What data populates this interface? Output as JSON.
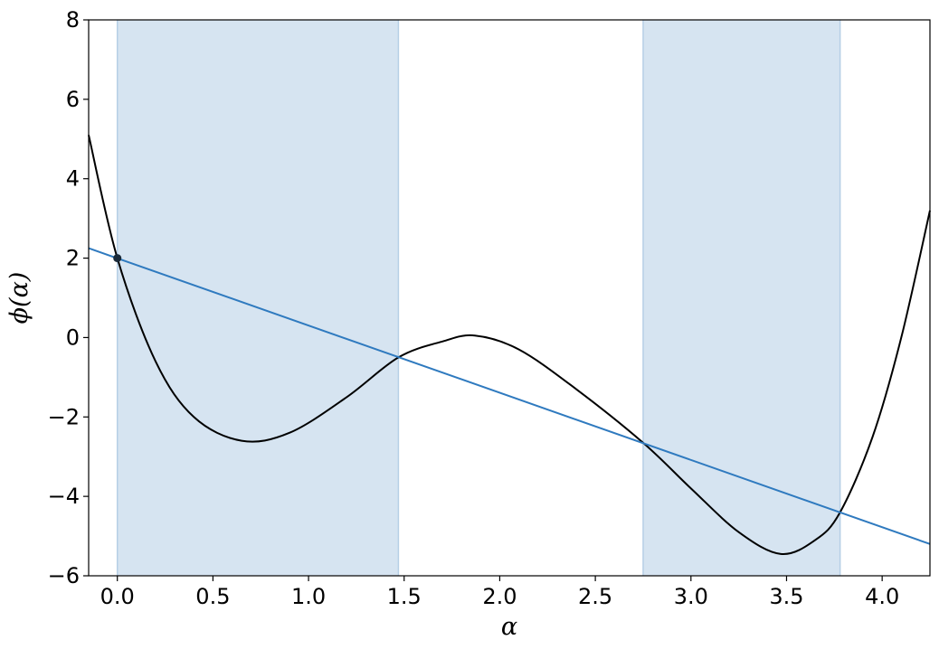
{
  "chart_data": {
    "type": "line",
    "title": "",
    "xlabel": "α",
    "ylabel": "ϕ(α)",
    "xlim": [
      -0.15,
      4.25
    ],
    "ylim": [
      -6,
      8
    ],
    "xticks": [
      0.0,
      0.5,
      1.0,
      1.5,
      2.0,
      2.5,
      3.0,
      3.5,
      4.0
    ],
    "xtick_labels": [
      "0.0",
      "0.5",
      "1.0",
      "1.5",
      "2.0",
      "2.5",
      "3.0",
      "3.5",
      "4.0"
    ],
    "yticks": [
      -6,
      -4,
      -2,
      0,
      2,
      4,
      6,
      8
    ],
    "ytick_labels": [
      "−6",
      "−4",
      "−2",
      "0",
      "2",
      "4",
      "6",
      "8"
    ],
    "grid": false,
    "shaded_regions": [
      {
        "x_start": 0.0,
        "x_end": 1.47
      },
      {
        "x_start": 2.75,
        "x_end": 3.78
      }
    ],
    "series": [
      {
        "color": "#000000",
        "x": [
          -0.15,
          0.0,
          0.2,
          0.4,
          0.65,
          0.9,
          1.2,
          1.47,
          1.7,
          1.87,
          2.1,
          2.4,
          2.75,
          3.0,
          3.25,
          3.47,
          3.65,
          3.78,
          3.95,
          4.1,
          4.25
        ],
        "y": [
          5.1,
          2.0,
          -0.6,
          -2.0,
          -2.6,
          -2.4,
          -1.5,
          -0.5,
          -0.1,
          0.05,
          -0.3,
          -1.3,
          -2.65,
          -3.8,
          -4.9,
          -5.45,
          -5.1,
          -4.4,
          -2.5,
          0.0,
          3.2
        ]
      },
      {
        "color": "#2f7abf",
        "x": [
          -0.15,
          4.25
        ],
        "y": [
          2.25,
          -5.2
        ]
      }
    ],
    "markers": [
      {
        "x": 0.0,
        "y": 2.0,
        "color": "#1a2a3a"
      }
    ],
    "colors": {
      "shade": "#d6e4f1",
      "shade_edge": "#b6cfe6",
      "curve": "#000000",
      "line": "#2f7abf"
    }
  }
}
